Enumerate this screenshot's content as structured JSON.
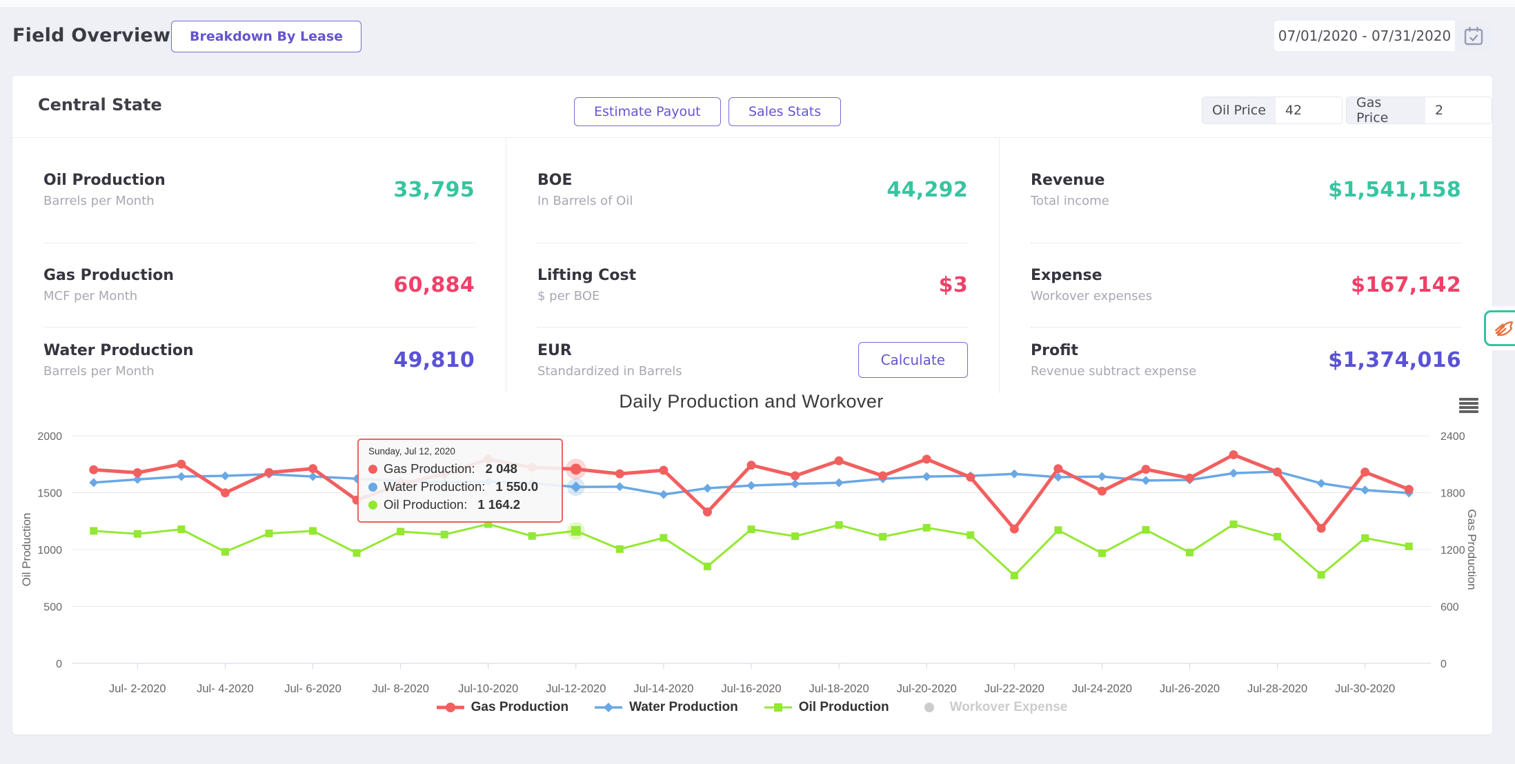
{
  "header": {
    "title": "Field Overview",
    "breakdown_label": "Breakdown By Lease",
    "date_range": "07/01/2020 - 07/31/2020"
  },
  "card_header": {
    "title": "Central State",
    "estimate_payout": "Estimate Payout",
    "sales_stats": "Sales Stats",
    "oil_price_label": "Oil Price",
    "oil_price_value": "42",
    "gas_price_label": "Gas Price",
    "gas_price_value": "2"
  },
  "stats": [
    [
      {
        "title": "Oil Production",
        "subtitle": "Barrels per Month",
        "value": "33,795"
      },
      {
        "title": "Gas Production",
        "subtitle": "MCF per Month",
        "value": "60,884"
      },
      {
        "title": "Water Production",
        "subtitle": "Barrels per Month",
        "value": "49,810"
      }
    ],
    [
      {
        "title": "BOE",
        "subtitle": "In Barrels of Oil",
        "value": "44,292"
      },
      {
        "title": "Lifting Cost",
        "subtitle": "$ per BOE",
        "value": "$3"
      },
      {
        "title": "EUR",
        "subtitle": "Standardized in Barrels",
        "button": "Calculate"
      }
    ],
    [
      {
        "title": "Revenue",
        "subtitle": "Total income",
        "value": "$1,541,158"
      },
      {
        "title": "Expense",
        "subtitle": "Workover expenses",
        "value": "$167,142"
      },
      {
        "title": "Profit",
        "subtitle": "Revenue subtract expense",
        "value": "$1,374,016"
      }
    ]
  ],
  "colors": {
    "accent_purple": "#6355cf",
    "stat_teal": "#35c5a1",
    "stat_red": "#ef4168",
    "stat_purple": "#5a52d5",
    "gas_line": "#f25f5f",
    "water_line": "#69a8e4",
    "oil_line": "#93e831",
    "disabled_gray": "#cccccc",
    "widget_teal": "#2ec5a2",
    "widget_orange": "#ed6f3a"
  },
  "chart_data": {
    "type": "line",
    "title": "Daily Production and Workover",
    "x_days": [
      1,
      2,
      3,
      4,
      5,
      6,
      7,
      8,
      9,
      10,
      11,
      12,
      13,
      14,
      15,
      16,
      17,
      18,
      19,
      20,
      21,
      22,
      23,
      24,
      25,
      26,
      27,
      28,
      29,
      30,
      31
    ],
    "x_tick_days": [
      2,
      4,
      6,
      8,
      10,
      12,
      14,
      16,
      18,
      20,
      22,
      24,
      26,
      28,
      30
    ],
    "x_tick_labels": [
      "Jul- 2-2020",
      "Jul- 4-2020",
      "Jul- 6-2020",
      "Jul- 8-2020",
      "Jul-10-2020",
      "Jul-12-2020",
      "Jul-14-2020",
      "Jul-16-2020",
      "Jul-18-2020",
      "Jul-20-2020",
      "Jul-22-2020",
      "Jul-24-2020",
      "Jul-26-2020",
      "Jul-28-2020",
      "Jul-30-2020"
    ],
    "axes": {
      "left": {
        "title": "Oil Production",
        "min": 0,
        "max": 2000,
        "ticks": [
          0,
          500,
          1000,
          1500,
          2000
        ]
      },
      "right": {
        "title": "Gas Production",
        "min": 0,
        "max": 2400,
        "ticks": [
          0,
          600,
          1200,
          1800,
          2400
        ]
      }
    },
    "grid": true,
    "legend_position": "bottom",
    "highlight_index": 11,
    "series": [
      {
        "name": "Oil Production",
        "axis": "left",
        "marker": "square",
        "color": "#93e831",
        "values": [
          1164,
          1138,
          1178,
          980,
          1142,
          1164,
          970,
          1158,
          1132,
          1224,
          1119,
          1164.2,
          1004,
          1103,
          852,
          1178,
          1117,
          1216,
          1113,
          1192,
          1127,
          772,
          1171,
          968,
          1173,
          974,
          1222,
          1113,
          778,
          1101,
          1028
        ]
      },
      {
        "name": "Water Production",
        "axis": "left",
        "marker": "diamond",
        "color": "#69a8e4",
        "values": [
          1589,
          1617,
          1642,
          1648,
          1662,
          1642,
          1623,
          1603,
          1592,
          1597,
          1583,
          1550,
          1553,
          1484,
          1539,
          1563,
          1577,
          1587,
          1622,
          1642,
          1648,
          1665,
          1636,
          1642,
          1607,
          1612,
          1671,
          1685,
          1582,
          1523,
          1497
        ]
      },
      {
        "name": "Gas Production",
        "axis": "right",
        "marker": "circle",
        "color": "#f25f5f",
        "values": [
          2042,
          2011,
          2101,
          1798,
          2013,
          2054,
          1722,
          1887,
          1998,
          2153,
          2066,
          2048,
          1999,
          2036,
          1596,
          2090,
          1978,
          2136,
          1978,
          2153,
          1963,
          1417,
          2053,
          1816,
          2046,
          1954,
          2200,
          2018,
          1424,
          2017,
          1835
        ]
      },
      {
        "name": "Workover Expense",
        "axis": "right",
        "marker": "circle",
        "color": "#cccccc",
        "hidden": true,
        "values": []
      }
    ],
    "legend_order": [
      "Gas Production",
      "Water Production",
      "Oil Production",
      "Workover Expense"
    ],
    "tooltip": {
      "title": "Sunday, Jul 12, 2020",
      "rows": [
        {
          "label": "Gas Production:",
          "value": "2 048",
          "color": "#f25f5f"
        },
        {
          "label": "Water Production:",
          "value": "1 550.0",
          "color": "#69a8e4"
        },
        {
          "label": "Oil Production:",
          "value": "1 164.2",
          "color": "#93e831"
        }
      ]
    }
  }
}
